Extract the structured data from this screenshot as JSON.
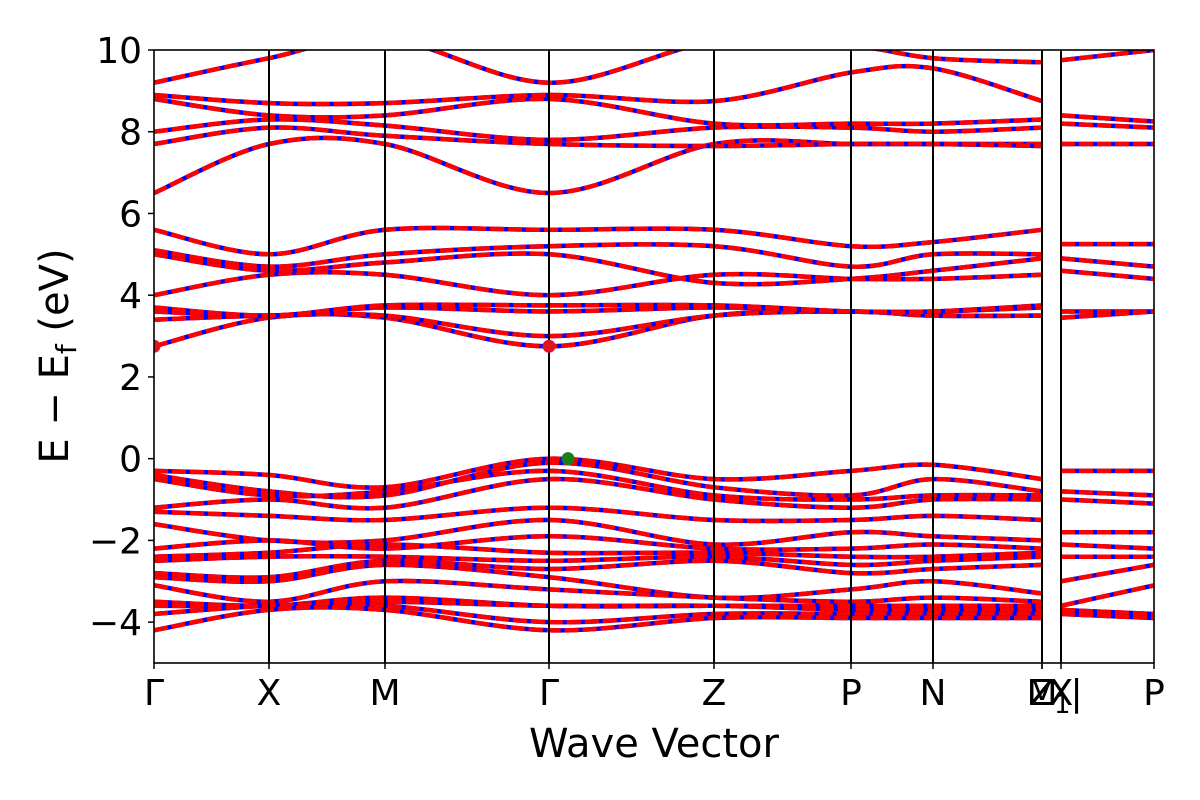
{
  "chart_data": {
    "type": "line",
    "title": "",
    "xlabel": "Wave Vector",
    "ylabel": "E − Ef",
    "ylabel_main": "E − E",
    "ylabel_sub": "f",
    "ylabel_unit": " (eV)",
    "ylim": [
      -5,
      10
    ],
    "xlim": [
      0,
      1
    ],
    "grid": false,
    "yticks": [
      -4,
      -2,
      0,
      2,
      4,
      6,
      8,
      10
    ],
    "ytick_labels": [
      "−4",
      "−2",
      "0",
      "2",
      "4",
      "6",
      "8",
      "10"
    ],
    "kpoints": [
      {
        "label": "Γ",
        "x": 0.0
      },
      {
        "label": "X",
        "x": 0.115
      },
      {
        "label": "M",
        "x": 0.231
      },
      {
        "label": "Γ",
        "x": 0.395
      },
      {
        "label": "Z",
        "x": 0.56
      },
      {
        "label": "P",
        "x": 0.697
      },
      {
        "label": "N",
        "x": 0.779
      },
      {
        "label": "Z1",
        "x": 0.888
      },
      {
        "label": "M",
        "x": 0.888
      },
      {
        "label": "X",
        "x": 0.907
      },
      {
        "label": "P",
        "x": 1.0
      }
    ],
    "vlines": [
      0.115,
      0.231,
      0.395,
      0.56,
      0.697,
      0.779,
      0.888,
      0.907
    ],
    "colors": {
      "spin_up": "#0000ff",
      "spin_down": "#ff0000",
      "cbm": "#e0141e",
      "vbm": "#1a7f1a"
    },
    "markers": [
      {
        "name": "cbm",
        "x": 0.0,
        "y": 2.75
      },
      {
        "name": "cbm",
        "x": 0.395,
        "y": 2.75
      },
      {
        "name": "vbm",
        "x": 0.414,
        "y": 0.0
      }
    ],
    "series": [
      {
        "x": [
          0,
          0.115,
          0.231,
          0.395,
          0.56,
          0.697,
          0.779,
          0.888
        ],
        "y": [
          6.5,
          7.7,
          7.7,
          6.5,
          7.7,
          7.7,
          7.7,
          7.7
        ]
      },
      {
        "x": [
          0,
          0.115,
          0.231,
          0.395,
          0.56,
          0.697,
          0.779,
          0.888
        ],
        "y": [
          7.7,
          8.1,
          7.9,
          7.7,
          7.65,
          7.7,
          7.7,
          7.65
        ]
      },
      {
        "x": [
          0,
          0.115,
          0.231,
          0.395,
          0.56,
          0.697,
          0.779,
          0.888
        ],
        "y": [
          8.0,
          8.3,
          8.15,
          7.8,
          8.1,
          8.1,
          8.0,
          8.1
        ]
      },
      {
        "x": [
          0,
          0.115,
          0.231,
          0.395,
          0.56,
          0.697,
          0.779,
          0.888
        ],
        "y": [
          8.8,
          8.4,
          8.4,
          8.8,
          8.2,
          8.2,
          8.2,
          8.3
        ]
      },
      {
        "x": [
          0,
          0.115,
          0.231,
          0.395,
          0.56,
          0.697,
          0.779,
          0.888
        ],
        "y": [
          8.9,
          8.7,
          8.7,
          8.9,
          8.75,
          9.45,
          9.55,
          8.75
        ]
      },
      {
        "x": [
          0,
          0.115,
          0.231,
          0.395,
          0.56,
          0.697,
          0.779,
          0.888
        ],
        "y": [
          9.2,
          9.8,
          10.3,
          9.2,
          10.2,
          10.1,
          9.8,
          9.7
        ]
      },
      {
        "x": [
          0,
          0.115,
          0.231,
          0.395,
          0.56,
          0.697,
          0.779,
          0.888
        ],
        "y": [
          4.0,
          4.5,
          4.5,
          4.0,
          4.5,
          4.4,
          4.4,
          4.5
        ]
      },
      {
        "x": [
          0,
          0.115,
          0.231,
          0.395,
          0.56,
          0.697,
          0.779,
          0.888
        ],
        "y": [
          5.0,
          4.6,
          4.8,
          5.0,
          4.3,
          4.4,
          4.6,
          4.9
        ]
      },
      {
        "x": [
          0,
          0.115,
          0.231,
          0.395,
          0.56,
          0.697,
          0.779,
          0.888
        ],
        "y": [
          5.1,
          4.7,
          5.0,
          5.2,
          5.2,
          4.7,
          5.0,
          5.0
        ]
      },
      {
        "x": [
          0,
          0.115,
          0.231,
          0.395,
          0.56,
          0.697,
          0.779,
          0.888
        ],
        "y": [
          5.6,
          5.0,
          5.6,
          5.6,
          5.6,
          5.2,
          5.3,
          5.6
        ]
      },
      {
        "x": [
          0,
          0.115,
          0.231,
          0.395,
          0.56,
          0.697,
          0.779,
          0.888
        ],
        "y": [
          2.75,
          3.45,
          3.45,
          2.75,
          3.5,
          3.6,
          3.5,
          3.5
        ]
      },
      {
        "x": [
          0,
          0.115,
          0.231,
          0.395,
          0.56,
          0.697,
          0.779,
          0.888
        ],
        "y": [
          3.4,
          3.5,
          3.5,
          3.0,
          3.5,
          3.6,
          3.5,
          3.5
        ]
      },
      {
        "x": [
          0,
          0.115,
          0.231,
          0.395,
          0.56,
          0.697,
          0.779,
          0.888
        ],
        "y": [
          3.6,
          3.5,
          3.7,
          3.6,
          3.7,
          3.6,
          3.6,
          3.7
        ]
      },
      {
        "x": [
          0,
          0.115,
          0.231,
          0.395,
          0.56,
          0.697,
          0.779,
          0.888
        ],
        "y": [
          3.7,
          3.5,
          3.75,
          3.75,
          3.75,
          3.6,
          3.6,
          3.75
        ]
      },
      {
        "x": [
          0,
          0.115,
          0.231,
          0.395,
          0.56,
          0.697,
          0.779,
          0.888
        ],
        "y": [
          -0.3,
          -0.4,
          -0.7,
          0.0,
          -0.5,
          -0.3,
          -0.15,
          -0.5
        ]
      },
      {
        "x": [
          0,
          0.115,
          0.231,
          0.395,
          0.56,
          0.697,
          0.779,
          0.888
        ],
        "y": [
          -0.4,
          -0.8,
          -0.9,
          -0.1,
          -0.7,
          -0.9,
          -0.5,
          -0.8
        ]
      },
      {
        "x": [
          0,
          0.115,
          0.231,
          0.395,
          0.56,
          0.697,
          0.779,
          0.888
        ],
        "y": [
          -0.5,
          -0.9,
          -0.8,
          -0.3,
          -0.9,
          -1.0,
          -0.9,
          -0.9
        ]
      },
      {
        "x": [
          0,
          0.115,
          0.231,
          0.395,
          0.56,
          0.697,
          0.779,
          0.888
        ],
        "y": [
          -1.2,
          -1.0,
          -1.2,
          -0.5,
          -1.0,
          -1.2,
          -1.0,
          -1.0
        ]
      },
      {
        "x": [
          0,
          0.115,
          0.231,
          0.395,
          0.56,
          0.697,
          0.779,
          0.888
        ],
        "y": [
          -1.3,
          -1.4,
          -1.5,
          -1.2,
          -1.5,
          -1.5,
          -1.4,
          -1.5
        ]
      },
      {
        "x": [
          0,
          0.115,
          0.231,
          0.395,
          0.56,
          0.697,
          0.779,
          0.888
        ],
        "y": [
          -1.6,
          -2.0,
          -2.0,
          -1.5,
          -2.1,
          -1.8,
          -1.9,
          -2.0
        ]
      },
      {
        "x": [
          0,
          0.115,
          0.231,
          0.395,
          0.56,
          0.697,
          0.779,
          0.888
        ],
        "y": [
          -2.2,
          -2.0,
          -2.2,
          -1.9,
          -2.2,
          -2.2,
          -2.1,
          -2.2
        ]
      },
      {
        "x": [
          0,
          0.115,
          0.231,
          0.395,
          0.56,
          0.697,
          0.779,
          0.888
        ],
        "y": [
          -2.4,
          -2.3,
          -2.1,
          -2.3,
          -2.3,
          -2.4,
          -2.4,
          -2.3
        ]
      },
      {
        "x": [
          0,
          0.115,
          0.231,
          0.395,
          0.56,
          0.697,
          0.779,
          0.888
        ],
        "y": [
          -2.5,
          -2.4,
          -2.4,
          -2.5,
          -2.4,
          -2.6,
          -2.5,
          -2.4
        ]
      },
      {
        "x": [
          0,
          0.115,
          0.231,
          0.395,
          0.56,
          0.697,
          0.779,
          0.888
        ],
        "y": [
          -2.8,
          -2.9,
          -2.5,
          -2.7,
          -2.5,
          -2.8,
          -2.7,
          -2.6
        ]
      },
      {
        "x": [
          0,
          0.115,
          0.231,
          0.395,
          0.56,
          0.697,
          0.779,
          0.888
        ],
        "y": [
          -2.9,
          -3.0,
          -2.6,
          -2.9,
          -3.4,
          -3.2,
          -3.0,
          -3.3
        ]
      },
      {
        "x": [
          0,
          0.115,
          0.231,
          0.395,
          0.56,
          0.697,
          0.779,
          0.888
        ],
        "y": [
          -3.1,
          -3.5,
          -3.0,
          -3.2,
          -3.4,
          -3.5,
          -3.4,
          -3.5
        ]
      },
      {
        "x": [
          0,
          0.115,
          0.231,
          0.395,
          0.56,
          0.697,
          0.779,
          0.888
        ],
        "y": [
          -3.5,
          -3.6,
          -3.4,
          -3.6,
          -3.6,
          -3.6,
          -3.6,
          -3.6
        ]
      },
      {
        "x": [
          0,
          0.115,
          0.231,
          0.395,
          0.56,
          0.697,
          0.779,
          0.888
        ],
        "y": [
          -3.6,
          -3.6,
          -3.5,
          -3.6,
          -3.6,
          -3.7,
          -3.7,
          -3.7
        ]
      },
      {
        "x": [
          0,
          0.115,
          0.231,
          0.395,
          0.56,
          0.697,
          0.779,
          0.888
        ],
        "y": [
          -3.8,
          -3.6,
          -3.6,
          -4.0,
          -3.8,
          -3.8,
          -3.8,
          -3.8
        ]
      },
      {
        "x": [
          0,
          0.115,
          0.231,
          0.395,
          0.56,
          0.697,
          0.779,
          0.888
        ],
        "y": [
          -4.2,
          -3.7,
          -3.7,
          -4.2,
          -3.9,
          -3.9,
          -3.9,
          -3.9
        ]
      },
      {
        "x": [
          0.907,
          1.0
        ],
        "y": [
          9.75,
          10.0
        ]
      },
      {
        "x": [
          0.907,
          1.0
        ],
        "y": [
          8.4,
          8.25
        ]
      },
      {
        "x": [
          0.907,
          1.0
        ],
        "y": [
          8.2,
          8.1
        ]
      },
      {
        "x": [
          0.907,
          1.0
        ],
        "y": [
          7.7,
          7.7
        ]
      },
      {
        "x": [
          0.907,
          1.0
        ],
        "y": [
          5.25,
          5.25
        ]
      },
      {
        "x": [
          0.907,
          1.0
        ],
        "y": [
          4.9,
          4.7
        ]
      },
      {
        "x": [
          0.907,
          1.0
        ],
        "y": [
          4.6,
          4.4
        ]
      },
      {
        "x": [
          0.907,
          1.0
        ],
        "y": [
          3.6,
          3.6
        ]
      },
      {
        "x": [
          0.907,
          1.0
        ],
        "y": [
          3.45,
          3.6
        ]
      },
      {
        "x": [
          0.907,
          1.0
        ],
        "y": [
          -0.3,
          -0.3
        ]
      },
      {
        "x": [
          0.907,
          1.0
        ],
        "y": [
          -0.8,
          -0.9
        ]
      },
      {
        "x": [
          0.907,
          1.0
        ],
        "y": [
          -1.0,
          -1.1
        ]
      },
      {
        "x": [
          0.907,
          1.0
        ],
        "y": [
          -1.8,
          -1.8
        ]
      },
      {
        "x": [
          0.907,
          1.0
        ],
        "y": [
          -2.1,
          -2.2
        ]
      },
      {
        "x": [
          0.907,
          1.0
        ],
        "y": [
          -2.4,
          -2.4
        ]
      },
      {
        "x": [
          0.907,
          1.0
        ],
        "y": [
          -3.0,
          -2.6
        ]
      },
      {
        "x": [
          0.907,
          1.0
        ],
        "y": [
          -3.6,
          -3.1
        ]
      },
      {
        "x": [
          0.907,
          1.0
        ],
        "y": [
          -3.7,
          -3.8
        ]
      },
      {
        "x": [
          0.907,
          1.0
        ],
        "y": [
          -3.8,
          -3.9
        ]
      }
    ]
  }
}
